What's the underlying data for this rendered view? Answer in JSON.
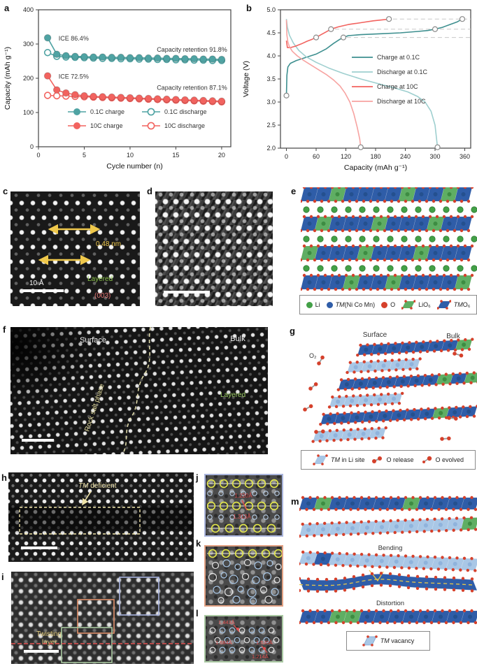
{
  "colors": {
    "teal": "#4FA3A3",
    "teal_dark": "#3D8F8F",
    "teal_light": "#9ECFCF",
    "red": "#F2635F",
    "red_light": "#F7A3A1",
    "slab_blue": "#2F5DA8",
    "slab_blue_dot": "#24508F",
    "slab_light": "#A9C7E6",
    "slab_light_dot": "#8FB3DC",
    "li_green": "#43A047",
    "unit_green": "#5FAE63",
    "o_red": "#D5402B",
    "annot_yellow": "#EFC84B",
    "stem_yellow": "#EDE3A4",
    "dash_gray": "#C8C8C8",
    "box_stroke": "#444444"
  },
  "panels": {
    "a": {
      "label": "a"
    },
    "b": {
      "label": "b"
    },
    "c": {
      "label": "c"
    },
    "d": {
      "label": "d"
    },
    "e": {
      "label": "e"
    },
    "f": {
      "label": "f"
    },
    "g": {
      "label": "g"
    },
    "h": {
      "label": "h"
    },
    "i": {
      "label": "i"
    },
    "j": {
      "label": "j"
    },
    "k": {
      "label": "k"
    },
    "l": {
      "label": "l"
    },
    "m": {
      "label": "m"
    }
  },
  "chart_data": [
    {
      "id": "a",
      "type": "line",
      "xlabel": "Cycle number (n)",
      "ylabel": "Capacity (mAh g⁻¹)",
      "xlim": [
        0,
        21
      ],
      "ylim": [
        0,
        400
      ],
      "xticks": [
        0,
        5,
        10,
        15,
        20
      ],
      "yticks": [
        0,
        100,
        200,
        300,
        400
      ],
      "ydecimals": 0,
      "annotations": [
        {
          "text": "ICE 86.4%",
          "x": 2.2,
          "y": 316,
          "align": "left"
        },
        {
          "text": "Capacity retention 91.8%",
          "x": 20.6,
          "y": 284,
          "align": "right"
        },
        {
          "text": "ICE 72.5%",
          "x": 2.2,
          "y": 205,
          "align": "left"
        },
        {
          "text": "Capacity retention 87.1%",
          "x": 20.6,
          "y": 172,
          "align": "right"
        }
      ],
      "series": [
        {
          "name": "0.1C discharge",
          "color": "#4FA3A3",
          "marker": "open",
          "values": [
            275,
            264,
            262,
            261,
            260,
            259,
            258,
            258,
            257,
            257,
            256,
            256,
            255,
            255,
            254,
            254,
            253,
            253,
            252,
            252
          ]
        },
        {
          "name": "0.1C charge",
          "color": "#4FA3A3",
          "marker": "filled",
          "values": [
            318,
            270,
            266,
            264,
            263,
            262,
            262,
            261,
            261,
            260,
            260,
            259,
            259,
            258,
            258,
            257,
            257,
            256,
            256,
            255
          ]
        },
        {
          "name": "10C discharge",
          "color": "#F2635F",
          "marker": "open",
          "values": [
            150,
            149,
            148,
            147,
            146,
            145,
            144,
            143,
            142,
            141,
            140,
            139,
            138,
            137,
            136,
            135,
            134,
            133,
            132,
            131
          ]
        },
        {
          "name": "10C charge",
          "color": "#F2635F",
          "marker": "filled",
          "values": [
            207,
            166,
            157,
            152,
            149,
            147,
            146,
            145,
            144,
            143,
            142,
            141,
            140,
            139,
            138,
            137,
            136,
            135,
            134,
            133
          ]
        }
      ],
      "legend": [
        {
          "label": "0.1C charge",
          "color": "#4FA3A3",
          "marker": "filled"
        },
        {
          "label": "0.1C discharge",
          "color": "#4FA3A3",
          "marker": "open"
        },
        {
          "label": "10C charge",
          "color": "#F2635F",
          "marker": "filled"
        },
        {
          "label": "10C discharge",
          "color": "#F2635F",
          "marker": "open"
        }
      ]
    },
    {
      "id": "b",
      "type": "line",
      "xlabel": "Capacity (mAh g⁻¹)",
      "ylabel": "Voltage (V)",
      "xlim": [
        -12,
        372
      ],
      "ylim": [
        2.0,
        5.0
      ],
      "xticks": [
        0,
        60,
        120,
        180,
        240,
        300,
        360
      ],
      "yticks": [
        2.0,
        2.5,
        3.0,
        3.5,
        4.0,
        4.5,
        5.0
      ],
      "ydecimals": 1,
      "dashed_levels": [
        {
          "y": 4.8,
          "x0": 215
        },
        {
          "y": 4.58,
          "x0": 98
        },
        {
          "y": 4.4,
          "x0": 122
        }
      ],
      "series": [
        {
          "name": "Charge at 0.1C",
          "color": "#3D8F8F",
          "points": [
            [
              0,
              3.14
            ],
            [
              1,
              3.58
            ],
            [
              3,
              3.76
            ],
            [
              8,
              3.84
            ],
            [
              20,
              3.9
            ],
            [
              40,
              3.97
            ],
            [
              60,
              4.04
            ],
            [
              80,
              4.15
            ],
            [
              95,
              4.27
            ],
            [
              108,
              4.36
            ],
            [
              115,
              4.4
            ],
            [
              125,
              4.44
            ],
            [
              150,
              4.46
            ],
            [
              190,
              4.48
            ],
            [
              230,
              4.5
            ],
            [
              265,
              4.53
            ],
            [
              285,
              4.55
            ],
            [
              300,
              4.58
            ],
            [
              315,
              4.62
            ],
            [
              330,
              4.68
            ],
            [
              345,
              4.74
            ],
            [
              355,
              4.8
            ]
          ],
          "markers": [
            [
              0,
              3.14
            ],
            [
              115,
              4.4
            ],
            [
              300,
              4.58
            ],
            [
              355,
              4.8
            ]
          ]
        },
        {
          "name": "Discharge at 0.1C",
          "color": "#9ECFCF",
          "points": [
            [
              0,
              4.8
            ],
            [
              2,
              4.62
            ],
            [
              6,
              4.45
            ],
            [
              14,
              4.28
            ],
            [
              25,
              4.12
            ],
            [
              40,
              3.98
            ],
            [
              60,
              3.86
            ],
            [
              85,
              3.74
            ],
            [
              115,
              3.62
            ],
            [
              150,
              3.5
            ],
            [
              185,
              3.4
            ],
            [
              220,
              3.3
            ],
            [
              245,
              3.22
            ],
            [
              265,
              3.12
            ],
            [
              280,
              3.0
            ],
            [
              292,
              2.8
            ],
            [
              300,
              2.5
            ],
            [
              305,
              2.02
            ]
          ],
          "markers": [
            [
              305,
              2.02
            ]
          ]
        },
        {
          "name": "Charge at 10C",
          "color": "#F2635F",
          "points": [
            [
              0,
              4.33
            ],
            [
              2,
              4.18
            ],
            [
              8,
              4.18
            ],
            [
              18,
              4.21
            ],
            [
              30,
              4.26
            ],
            [
              42,
              4.32
            ],
            [
              52,
              4.36
            ],
            [
              60,
              4.4
            ],
            [
              70,
              4.46
            ],
            [
              80,
              4.52
            ],
            [
              90,
              4.58
            ],
            [
              105,
              4.63
            ],
            [
              125,
              4.68
            ],
            [
              150,
              4.72
            ],
            [
              175,
              4.76
            ],
            [
              200,
              4.79
            ],
            [
              207,
              4.8
            ]
          ],
          "markers": [
            [
              60,
              4.4
            ],
            [
              90,
              4.58
            ],
            [
              207,
              4.8
            ]
          ]
        },
        {
          "name": "Discharge at 10C",
          "color": "#F7A3A1",
          "points": [
            [
              0,
              4.78
            ],
            [
              1,
              4.45
            ],
            [
              3,
              4.3
            ],
            [
              6,
              4.2
            ],
            [
              12,
              4.1
            ],
            [
              22,
              4.0
            ],
            [
              35,
              3.9
            ],
            [
              50,
              3.8
            ],
            [
              65,
              3.7
            ],
            [
              80,
              3.6
            ],
            [
              95,
              3.48
            ],
            [
              108,
              3.35
            ],
            [
              118,
              3.2
            ],
            [
              128,
              3.0
            ],
            [
              136,
              2.75
            ],
            [
              143,
              2.45
            ],
            [
              148,
              2.2
            ],
            [
              150,
              2.02
            ]
          ],
          "markers": [
            [
              150,
              2.02
            ]
          ]
        }
      ],
      "legend": [
        {
          "label": "Charge at 0.1C",
          "color": "#3D8F8F"
        },
        {
          "label": "Discharge at 0.1C",
          "color": "#9ECFCF"
        },
        {
          "label": "Charge at 10C",
          "color": "#F2635F"
        },
        {
          "label": "Discharge at 10C",
          "color": "#F7A3A1"
        }
      ]
    }
  ],
  "panel_c": {
    "spacing": "0.48 nm",
    "layered": "Layered",
    "plane": "(003)",
    "scalebar": "10 Å"
  },
  "panel_e": {
    "legend": [
      {
        "label": "Li"
      },
      {
        "tm": "TM",
        "rest": "(Ni Co Mn)"
      },
      {
        "label": "O"
      },
      {
        "label": "LiO₆"
      },
      {
        "tm": "TM",
        "rest": "O₆"
      }
    ]
  },
  "panel_f": {
    "surface": "Surface",
    "bulk": "Bulk",
    "rock_salt": "Rock salt phase",
    "layered": "Layered"
  },
  "panel_g": {
    "surface": "Surface",
    "bulk": "Bulk",
    "o2": "O₂",
    "legend": [
      {
        "tm": "TM",
        "rest": " in Li site"
      },
      {
        "label": "O release"
      },
      {
        "label": "O evolved"
      }
    ]
  },
  "panel_h": {
    "tm": "TM",
    "rest": " deficient"
  },
  "panel_i": {
    "line1": "Twisting",
    "line2": "layer"
  },
  "panel_j": {
    "d1": "1.220Å",
    "d2": "1.313Å"
  },
  "panel_l": {
    "d1": "1.443Å",
    "d2": "1.684Å",
    "d3": "1.530Å",
    "d4": "1.214Å"
  },
  "panel_m": {
    "bending": "Bending",
    "distortion": "Distortion",
    "legend_tm": "TM",
    "legend_rest": " vacancy"
  }
}
